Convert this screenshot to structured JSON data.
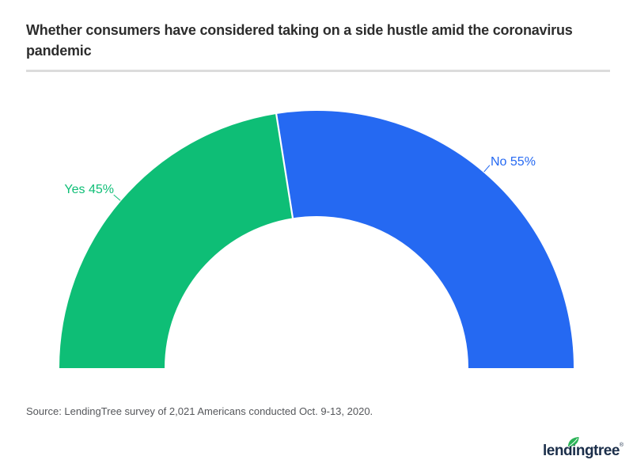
{
  "page": {
    "title": "Whether consumers have considered taking on a side hustle amid the coronavirus pandemic",
    "source_note": "Source: LendingTree survey of 2,021 Americans conducted Oct. 9-13, 2020."
  },
  "logo": {
    "text": "lendingtree",
    "registered_mark": "®",
    "icon": "leaf-icon"
  },
  "colors": {
    "yes_green": "#0ebe76",
    "no_blue": "#2569f2",
    "title_text": "#2d2d2d",
    "source_text": "#55575b",
    "divider": "#dcdcdc",
    "logo_navy": "#1b2e4a",
    "leaf_green": "#2cb458",
    "background": "#ffffff"
  },
  "chart_data": {
    "type": "pie",
    "variant": "half-donut",
    "title": "Whether consumers have considered taking on a side hustle amid the coronavirus pandemic",
    "categories": [
      "Yes",
      "No"
    ],
    "values": [
      45,
      55
    ],
    "unit": "%",
    "slices": [
      {
        "name": "Yes",
        "value": 45,
        "label": "Yes 45%",
        "color": "#0ebe76"
      },
      {
        "name": "No",
        "value": 55,
        "label": "No 55%",
        "color": "#2569f2"
      }
    ],
    "start_angle_deg": 180,
    "end_angle_deg": 0,
    "inner_radius_ratio": 0.59,
    "legend": "none",
    "data_labels": "outside-with-leader-lines"
  }
}
